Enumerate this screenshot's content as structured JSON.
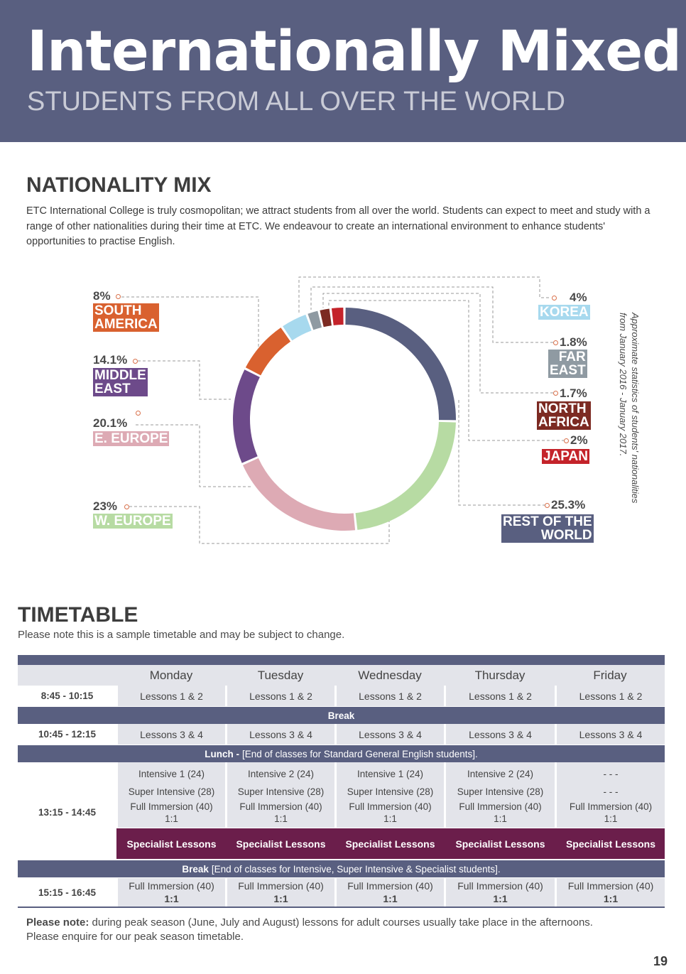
{
  "header": {
    "title": "Internationally Mixed",
    "subtitle": "STUDENTS FROM ALL OVER THE WORLD",
    "bg_color": "#595f80"
  },
  "nationality": {
    "heading": "NATIONALITY MIX",
    "intro": "ETC International College is truly cosmopolitan; we attract students from all over the world.  Students can expect to meet and study with a range of other nationalities during their time at ETC.  We endeavour to create an international environment to enhance students' opportunities to practise English.",
    "side_note_line1": "Approximate statistics of students' nationalities",
    "side_note_line2": "from January 2016 - January 2017."
  },
  "chart_data": {
    "type": "pie",
    "variant": "donut",
    "slices": [
      {
        "label": "REST OF THE WORLD",
        "value": 25.3,
        "display": "25.3%",
        "color": "#595f80"
      },
      {
        "label": "W. EUROPE",
        "value": 23,
        "display": "23%",
        "color": "#b7dba3"
      },
      {
        "label": "E. EUROPE",
        "value": 20.1,
        "display": "20.1%",
        "color": "#ddaab4"
      },
      {
        "label": "MIDDLE EAST",
        "value": 14.1,
        "display": "14.1%",
        "color": "#6d4a8a"
      },
      {
        "label": "SOUTH AMERICA",
        "value": 8,
        "display": "8%",
        "color": "#d9612f"
      },
      {
        "label": "KOREA",
        "value": 4,
        "display": "4%",
        "color": "#a7d9ee"
      },
      {
        "label": "FAR EAST",
        "value": 1.8,
        "display": "1.8%",
        "color": "#8f9aa2"
      },
      {
        "label": "NORTH AFRICA",
        "value": 1.7,
        "display": "1.7%",
        "color": "#7c2a22"
      },
      {
        "label": "JAPAN",
        "value": 2,
        "display": "2%",
        "color": "#c4232a"
      }
    ],
    "labels": {
      "south_america": [
        "SOUTH",
        "AMERICA"
      ],
      "middle_east": [
        "MIDDLE",
        "EAST"
      ],
      "e_europe": "E. EUROPE",
      "w_europe": "W. EUROPE",
      "korea": "KOREA",
      "far_east": [
        "FAR",
        "EAST"
      ],
      "north_africa": [
        "NORTH",
        "AFRICA"
      ],
      "japan": "JAPAN",
      "rest": [
        "REST OF THE",
        "WORLD"
      ]
    }
  },
  "timetable": {
    "heading": "TIMETABLE",
    "note": "Please note this is a sample timetable and may be subject to change.",
    "days": [
      "Monday",
      "Tuesday",
      "Wednesday",
      "Thursday",
      "Friday"
    ],
    "slot1": {
      "time": "8:45 - 10:15",
      "lessons": [
        "Lessons 1 & 2",
        "Lessons 1 & 2",
        "Lessons 1 & 2",
        "Lessons 1 & 2",
        "Lessons 1 & 2"
      ]
    },
    "break1": "Break",
    "slot2": {
      "time": "10:45 - 12:15",
      "lessons": [
        "Lessons 3 & 4",
        "Lessons 3 & 4",
        "Lessons 3 & 4",
        "Lessons 3 & 4",
        "Lessons 3 & 4"
      ]
    },
    "lunch": {
      "bold": "Lunch -",
      "text": "[End of classes for Standard General English students]."
    },
    "slot3": {
      "time": "13:15 - 14:45",
      "intensive": [
        "Intensive 1 (24)",
        "Intensive 2 (24)",
        "Intensive 1 (24)",
        "Intensive 2 (24)",
        "- - -"
      ],
      "super": [
        "Super Intensive (28)",
        "Super Intensive (28)",
        "Super Intensive (28)",
        "Super Intensive (28)",
        "- - -"
      ],
      "full": [
        "Full Immersion (40)",
        "Full Immersion (40)",
        "Full Immersion (40)",
        "Full Immersion (40)",
        "Full Immersion (40)"
      ],
      "ratio": [
        "1:1",
        "1:1",
        "1:1",
        "1:1",
        "1:1"
      ]
    },
    "specialist": [
      "Specialist Lessons",
      "Specialist Lessons",
      "Specialist Lessons",
      "Specialist Lessons",
      "Specialist Lessons"
    ],
    "break2": {
      "bold": "Break",
      "text": "[End of classes for Intensive, Super Intensive & Specialist students]."
    },
    "slot4": {
      "time": "15:15 - 16:45",
      "full": [
        "Full Immersion (40)",
        "Full Immersion (40)",
        "Full Immersion (40)",
        "Full Immersion (40)",
        "Full Immersion (40)"
      ],
      "ratio": [
        "1:1",
        "1:1",
        "1:1",
        "1:1",
        "1:1"
      ]
    }
  },
  "footer": {
    "note_bold": "Please note:",
    "note_text": " during peak season (June, July and August) lessons for adult courses usually take place in the afternoons.",
    "note_line2": "Please enquire for our peak season timetable.",
    "page_number": "19"
  }
}
